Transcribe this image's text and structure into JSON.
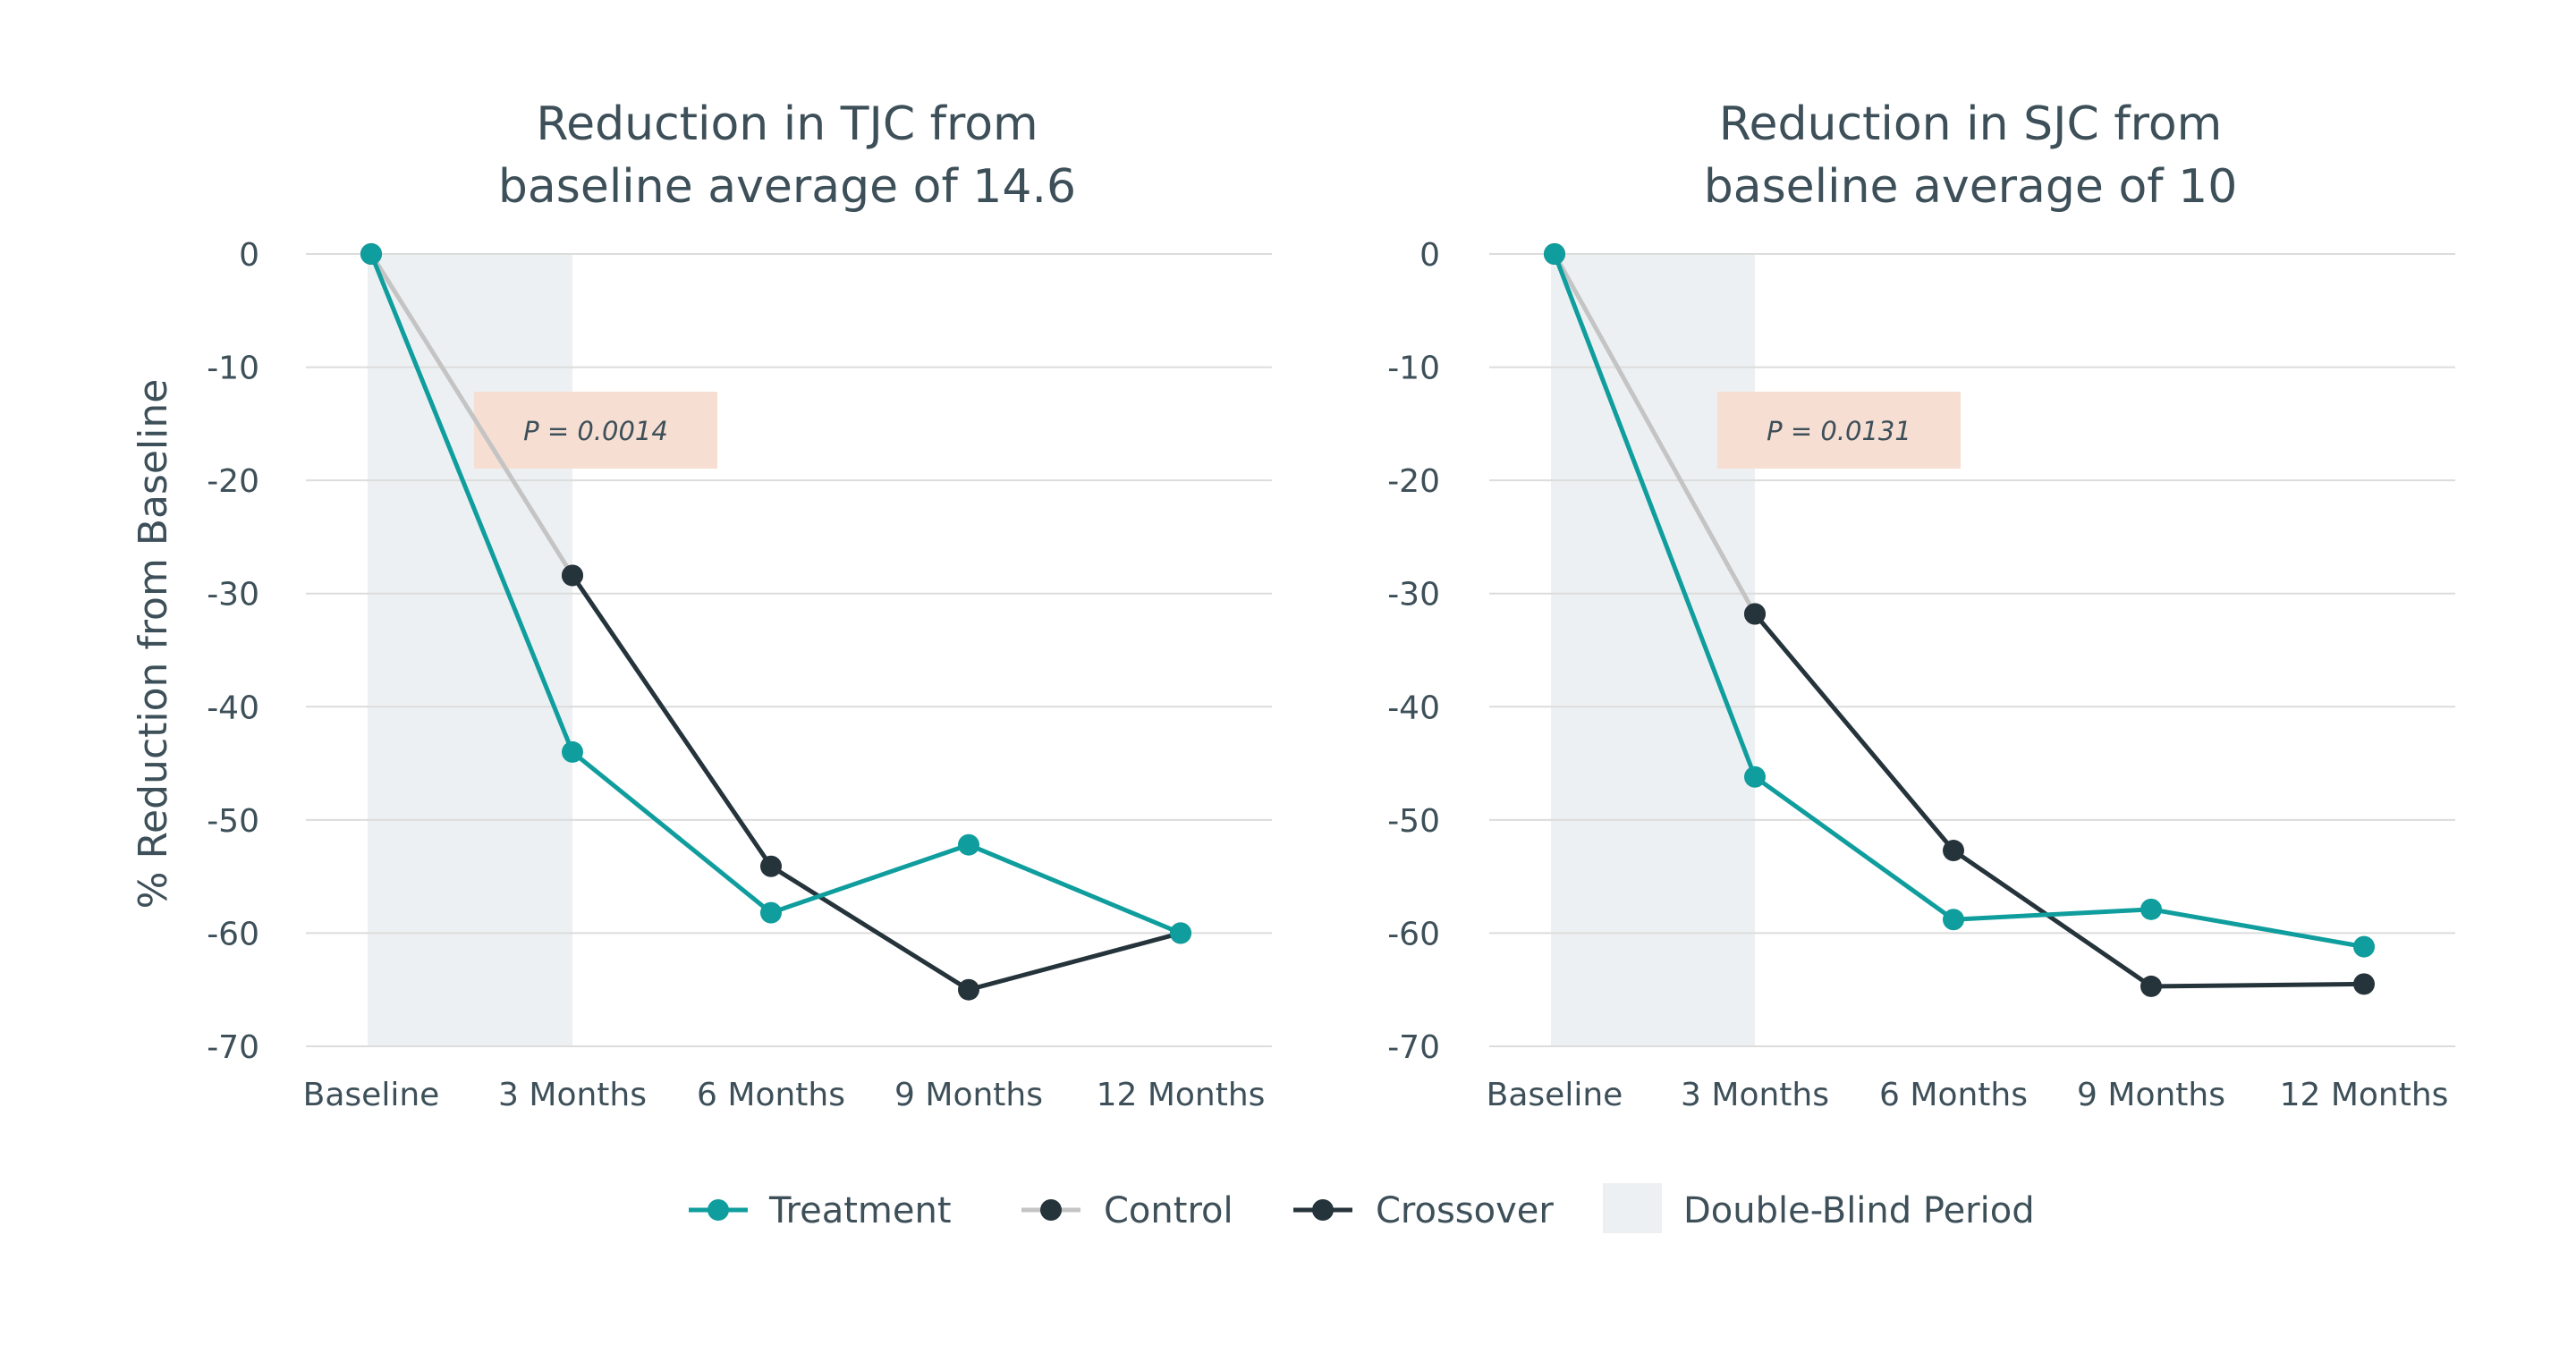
{
  "colors": {
    "treatment": "#0f9d9d",
    "control": "#c4c4c4",
    "crossover": "#25333b",
    "marker_dark": "#25333b",
    "shade": "#edf0f2",
    "pbox": "#f6ded3",
    "grid": "#dcdcdc",
    "text": "#3d4f58"
  },
  "ylabel": "% Reduction from Baseline",
  "legend": {
    "treatment": "Treatment",
    "control": "Control",
    "crossover": "Crossover",
    "shade": "Double-Blind Period"
  },
  "chart_data": [
    {
      "type": "line",
      "title_line1": "Reduction in TJC from",
      "title_line2": "baseline average of 14.6",
      "categories": [
        "Baseline",
        "3 Months",
        "6 Months",
        "9 Months",
        "12 Months"
      ],
      "ylim": [
        -70,
        0
      ],
      "yticks": [
        0,
        -10,
        -20,
        -30,
        -40,
        -50,
        -60,
        -70
      ],
      "grid": true,
      "shaded_period": [
        "Baseline",
        "3 Months"
      ],
      "annotation": "P = 0.0014",
      "series": [
        {
          "name": "Treatment",
          "key": "treatment",
          "x": [
            "Baseline",
            "3 Months",
            "6 Months",
            "9 Months",
            "12 Months"
          ],
          "values": [
            0,
            -44,
            -58.2,
            -52.2,
            -60
          ]
        },
        {
          "name": "Control",
          "key": "control",
          "x": [
            "Baseline",
            "3 Months"
          ],
          "values": [
            0,
            -28.4
          ]
        },
        {
          "name": "Crossover",
          "key": "crossover",
          "x": [
            "3 Months",
            "6 Months",
            "9 Months",
            "12 Months"
          ],
          "values": [
            -28.4,
            -54.1,
            -65,
            -60
          ]
        }
      ]
    },
    {
      "type": "line",
      "title_line1": "Reduction in SJC from",
      "title_line2": "baseline average of 10",
      "categories": [
        "Baseline",
        "3 Months",
        "6 Months",
        "9 Months",
        "12 Months"
      ],
      "ylim": [
        -70,
        0
      ],
      "yticks": [
        0,
        -10,
        -20,
        -30,
        -40,
        -50,
        -60,
        -70
      ],
      "grid": true,
      "shaded_period": [
        "Baseline",
        "3 Months"
      ],
      "annotation": "P = 0.0131",
      "series": [
        {
          "name": "Treatment",
          "key": "treatment",
          "x": [
            "Baseline",
            "3 Months",
            "6 Months",
            "9 Months",
            "12 Months"
          ],
          "values": [
            0,
            -46.2,
            -58.8,
            -57.9,
            -61.2
          ]
        },
        {
          "name": "Control",
          "key": "control",
          "x": [
            "Baseline",
            "3 Months"
          ],
          "values": [
            0,
            -31.8
          ]
        },
        {
          "name": "Crossover",
          "key": "crossover",
          "x": [
            "3 Months",
            "6 Months",
            "9 Months",
            "12 Months"
          ],
          "values": [
            -31.8,
            -52.7,
            -64.7,
            -64.5
          ]
        }
      ]
    }
  ]
}
